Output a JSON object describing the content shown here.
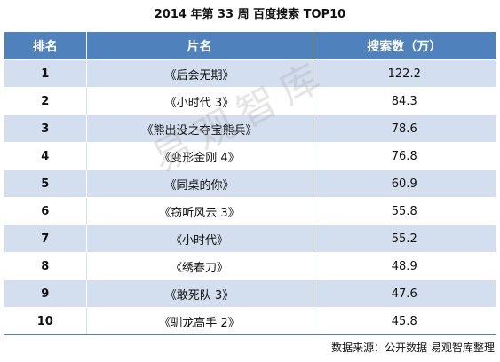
{
  "title": "2014 年第 33 周 百度搜索 TOP10",
  "table": {
    "headers": [
      "排名",
      "片名",
      "搜索数（万）"
    ],
    "rows": [
      {
        "rank": "1",
        "name": "《后会无期》",
        "searches": "122.2"
      },
      {
        "rank": "2",
        "name": "《小时代 3》",
        "searches": "84.3"
      },
      {
        "rank": "3",
        "name": "《熊出没之夺宝熊兵》",
        "searches": "78.6"
      },
      {
        "rank": "4",
        "name": "《变形金刚 4》",
        "searches": "76.8"
      },
      {
        "rank": "5",
        "name": "《同桌的你》",
        "searches": "60.9"
      },
      {
        "rank": "6",
        "name": "《窃听风云 3》",
        "searches": "55.8"
      },
      {
        "rank": "7",
        "name": "《小时代》",
        "searches": "55.2"
      },
      {
        "rank": "8",
        "name": "《绣春刀》",
        "searches": "48.9"
      },
      {
        "rank": "9",
        "name": "《敢死队 3》",
        "searches": "47.6"
      },
      {
        "rank": "10",
        "name": "《驯龙高手 2》",
        "searches": "45.8"
      }
    ]
  },
  "watermark": "易观智库",
  "source": "数据来源：公开数据 易观智库整理",
  "colors": {
    "header_bg": "#4f81bd",
    "band_bg": "#d3dfee"
  }
}
